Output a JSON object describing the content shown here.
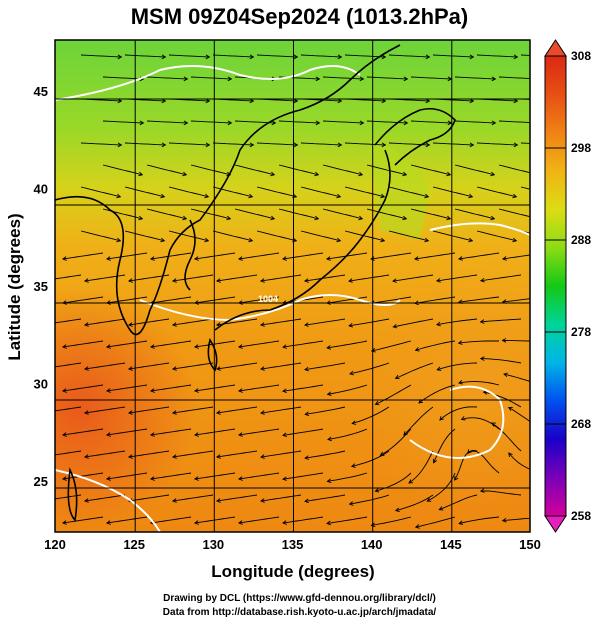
{
  "title": "MSM 09Z04Sep2024 (1013.2hPa)",
  "map": {
    "lon_range": [
      120,
      150
    ],
    "lat_range": [
      22.4,
      47.6
    ],
    "x_axis_label": "Longitude (degrees)",
    "y_axis_label": "Latitude  (degrees)",
    "x_ticks": [
      "120",
      "125",
      "130",
      "135",
      "140",
      "145",
      "150"
    ],
    "y_ticks": [
      "25",
      "30",
      "35",
      "40",
      "45"
    ],
    "grid": "on",
    "field": "streamlines over color-shaded temperature",
    "contour_color": "#ffffff",
    "coast_color": "#000000",
    "streamline_color": "#000000",
    "contour_label": "1004"
  },
  "colorbar": {
    "range": [
      258,
      308
    ],
    "tick_labels": [
      "308",
      "298",
      "288",
      "278",
      "268",
      "258"
    ],
    "colors": [
      "#d4009a",
      "#7a00b8",
      "#1a00c8",
      "#0050f0",
      "#00b4e6",
      "#00d49a",
      "#14c814",
      "#8cdc14",
      "#dcdc14",
      "#f0b414",
      "#f08214",
      "#e65014",
      "#dc2814"
    ]
  },
  "credits": {
    "line1": "Drawing by DCL (https://www.gfd-dennou.org/library/dcl/)",
    "line2": "Data from http://database.rish.kyoto-u.ac.jp/arch/jmadata/"
  }
}
